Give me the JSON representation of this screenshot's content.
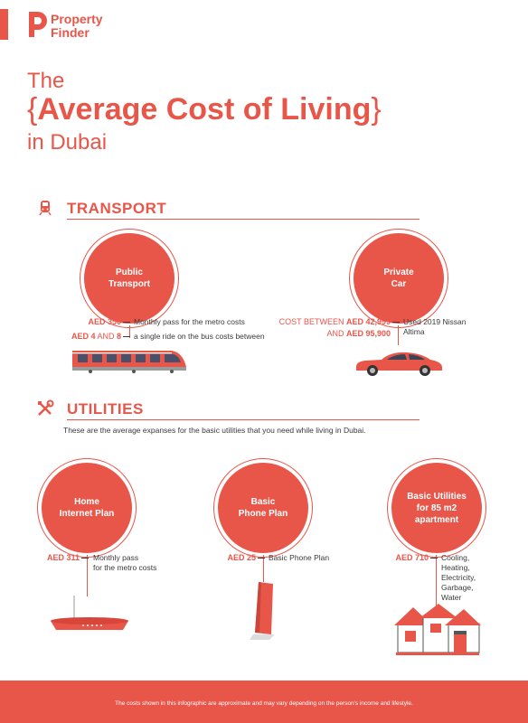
{
  "brand": {
    "line1": "Property",
    "line2": "Finder",
    "color": "#e8564a"
  },
  "title": {
    "line1": "The",
    "brace_open": "{",
    "main": "Average Cost of Living",
    "brace_close": "}",
    "line3": "in Dubai"
  },
  "transport": {
    "heading": "TRANSPORT",
    "icon": "train-icon",
    "public": {
      "bubble_line1": "Public",
      "bubble_line2": "Transport",
      "row1_amount": "AED 350",
      "row1_desc": "Monthly pass for the metro costs",
      "row2_amount_a": "AED 4",
      "row2_and": " AND ",
      "row2_amount_b": "8",
      "row2_desc": "a single ride on the bus costs between",
      "image_icon": "tram-icon"
    },
    "private": {
      "bubble_line1": "Private",
      "bubble_line2": "Car",
      "row1_prefix": "COST BETWEEN ",
      "row1_amount": "AED 42,999",
      "row2_prefix": "AND ",
      "row2_amount": "AED 95,900",
      "desc_line1": "Used 2019 Nissan",
      "desc_line2": "Altima",
      "image_icon": "car-icon"
    }
  },
  "utilities": {
    "heading": "UTILITIES",
    "icon": "tools-icon",
    "intro": "These are the average expanses for the basic utilities that you need while living in Dubai.",
    "internet": {
      "bubble_line1": "Home",
      "bubble_line2": "Internet Plan",
      "amount": "AED 311",
      "desc_line1": "Monthly pass",
      "desc_line2": "for the metro costs",
      "image_icon": "router-icon"
    },
    "phone": {
      "bubble_line1": "Basic",
      "bubble_line2": "Phone Plan",
      "amount": "AED 25",
      "desc_line1": "Basic Phone Plan",
      "image_icon": "phone-icon"
    },
    "basic": {
      "bubble_line1": "Basic Utilities",
      "bubble_line2": "for 85 m2",
      "bubble_line3": "apartment",
      "amount": "AED 710",
      "desc": [
        "Cooling,",
        "Heating,",
        "Electricity,",
        "Garbage,",
        "Water"
      ],
      "image_icon": "house-icon"
    }
  },
  "footer": {
    "text": "The costs shown in this infographic are approximate and may vary depending on the person's income and lifestyle."
  }
}
